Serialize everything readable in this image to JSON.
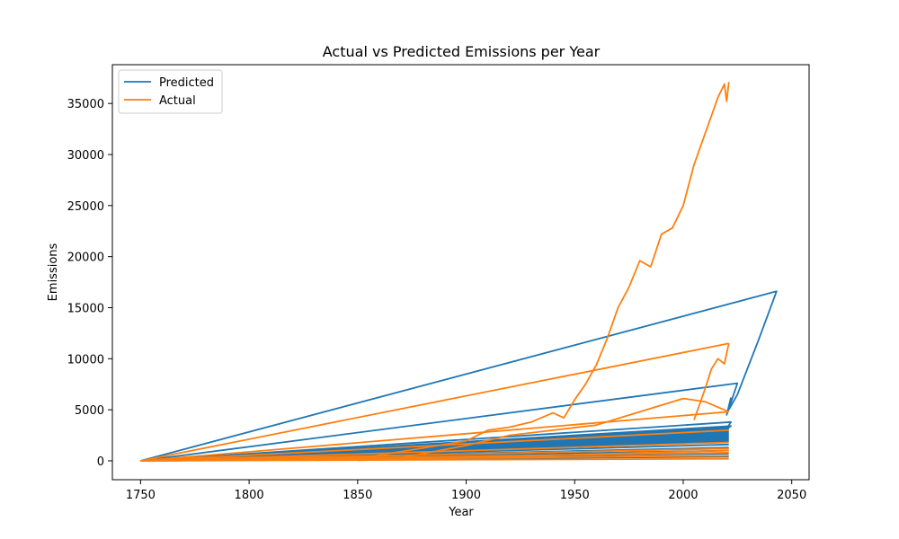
{
  "chart_data": {
    "type": "line",
    "title": "Actual vs Predicted Emissions per Year",
    "xlabel": "Year",
    "ylabel": "Emissions",
    "xlim": [
      1737,
      2058
    ],
    "ylim": [
      -1850,
      38800
    ],
    "x_ticks": [
      1750,
      1800,
      1850,
      1900,
      1950,
      2000,
      2050
    ],
    "y_ticks": [
      0,
      5000,
      10000,
      15000,
      20000,
      25000,
      30000,
      35000
    ],
    "x_tick_labels": [
      "1750",
      "1800",
      "1850",
      "1900",
      "1950",
      "2000",
      "2050"
    ],
    "y_tick_labels": [
      "0",
      "5000",
      "10000",
      "15000",
      "20000",
      "25000",
      "30000",
      "35000"
    ],
    "grid": false,
    "legend_position": "top-left",
    "series": [
      {
        "name": "Predicted",
        "color": "#1f77b4",
        "segments": [
          {
            "x": [
              1750,
              2043,
              2035,
              2025,
              2021
            ],
            "y": [
              0,
              16600,
              12000,
              6500,
              5000
            ]
          },
          {
            "x": [
              1750,
              2025,
              2020,
              2022
            ],
            "y": [
              0,
              7600,
              4500,
              6200
            ]
          },
          {
            "x": [
              1750,
              2022,
              2018,
              2021
            ],
            "y": [
              0,
              3800,
              2500,
              3500
            ]
          },
          {
            "x": [
              1750,
              2022,
              2014,
              2020
            ],
            "y": [
              0,
              3400,
              2200,
              3000
            ]
          },
          {
            "x": [
              1770,
              2021
            ],
            "y": [
              200,
              3300
            ]
          },
          {
            "x": [
              1780,
              2021
            ],
            "y": [
              300,
              3200
            ]
          },
          {
            "x": [
              1790,
              2021
            ],
            "y": [
              350,
              3100
            ]
          },
          {
            "x": [
              1800,
              2021
            ],
            "y": [
              400,
              3000
            ]
          },
          {
            "x": [
              1810,
              2021
            ],
            "y": [
              450,
              2900
            ]
          },
          {
            "x": [
              1820,
              2021
            ],
            "y": [
              500,
              2800
            ]
          },
          {
            "x": [
              1830,
              2021
            ],
            "y": [
              550,
              2700
            ]
          },
          {
            "x": [
              1840,
              2021
            ],
            "y": [
              600,
              2600
            ]
          },
          {
            "x": [
              1850,
              2021
            ],
            "y": [
              650,
              2500
            ]
          },
          {
            "x": [
              1860,
              2021
            ],
            "y": [
              700,
              2400
            ]
          },
          {
            "x": [
              1870,
              2021
            ],
            "y": [
              750,
              2300
            ]
          },
          {
            "x": [
              1880,
              2021
            ],
            "y": [
              800,
              2200
            ]
          },
          {
            "x": [
              1890,
              2021
            ],
            "y": [
              850,
              2100
            ]
          },
          {
            "x": [
              1900,
              2021
            ],
            "y": [
              900,
              2000
            ]
          },
          {
            "x": [
              1750,
              2021
            ],
            "y": [
              0,
              1900
            ]
          },
          {
            "x": [
              1750,
              2021
            ],
            "y": [
              0,
              1600
            ]
          },
          {
            "x": [
              1750,
              2021
            ],
            "y": [
              0,
              1300
            ]
          },
          {
            "x": [
              1750,
              2021
            ],
            "y": [
              0,
              1000
            ]
          },
          {
            "x": [
              1750,
              2021
            ],
            "y": [
              0,
              700
            ]
          },
          {
            "x": [
              1750,
              2021
            ],
            "y": [
              0,
              400
            ]
          }
        ]
      },
      {
        "name": "Actual",
        "color": "#ff7f0e",
        "segments": [
          {
            "x": [
              1750,
              1850,
              1900,
              1910,
              1920,
              1930,
              1940,
              1945,
              1950,
              1955,
              1960,
              1965,
              1970,
              1975,
              1980,
              1985,
              1990,
              1995,
              2000,
              2005,
              2010,
              2013,
              2016,
              2019,
              2020,
              2021
            ],
            "y": [
              0,
              200,
              1950,
              3000,
              3300,
              3800,
              4700,
              4200,
              6000,
              7500,
              9400,
              12000,
              15000,
              17000,
              19600,
              19000,
              22200,
              22800,
              25000,
              29000,
              32000,
              33800,
              35600,
              36900,
              35200,
              37100
            ]
          },
          {
            "x": [
              1750,
              2021
            ],
            "y": [
              0,
              11500
            ]
          },
          {
            "x": [
              2005,
              2010,
              2013,
              2016,
              2019,
              2021
            ],
            "y": [
              4000,
              7000,
              9000,
              10000,
              9500,
              11500
            ]
          },
          {
            "x": [
              1750,
              2021
            ],
            "y": [
              0,
              4800
            ]
          },
          {
            "x": [
              1870,
              1900,
              1920,
              1940,
              1960,
              1980,
              2000,
              2010,
              2021
            ],
            "y": [
              300,
              1500,
              2500,
              3000,
              3500,
              4800,
              6100,
              5800,
              4800
            ]
          },
          {
            "x": [
              1750,
              2021
            ],
            "y": [
              0,
              3000
            ]
          },
          {
            "x": [
              1750,
              2021
            ],
            "y": [
              0,
              1800
            ]
          },
          {
            "x": [
              1750,
              2021
            ],
            "y": [
              0,
              1200
            ]
          },
          {
            "x": [
              1750,
              2021
            ],
            "y": [
              0,
              800
            ]
          },
          {
            "x": [
              1750,
              2021
            ],
            "y": [
              0,
              500
            ]
          },
          {
            "x": [
              1750,
              2021
            ],
            "y": [
              0,
              200
            ]
          },
          {
            "x": [
              1850,
              1900,
              1950,
              2000,
              2021
            ],
            "y": [
              50,
              300,
              600,
              900,
              1000
            ]
          }
        ]
      }
    ]
  }
}
